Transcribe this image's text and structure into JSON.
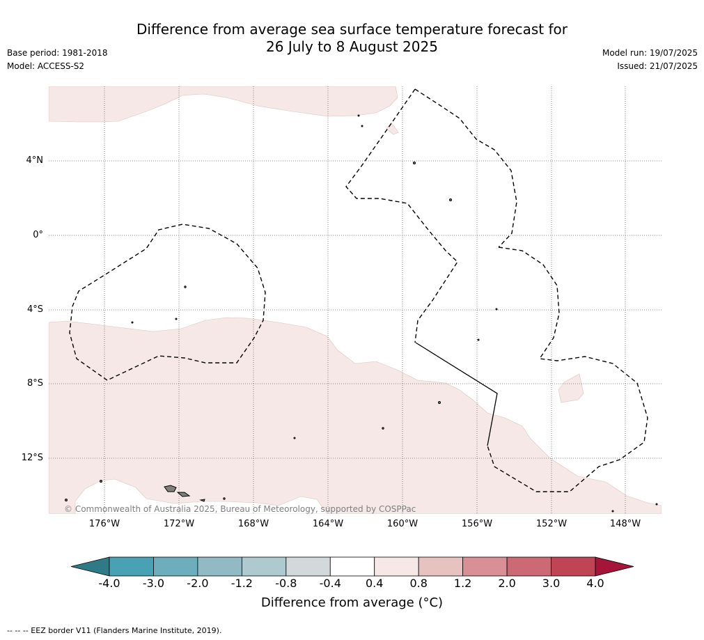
{
  "title": {
    "line1": "Difference from average sea surface temperature forecast for",
    "line2": "26 July to 8 August 2025"
  },
  "meta": {
    "base_period": "Base period: 1981-2018",
    "model": "Model: ACCESS-S2",
    "model_run": "Model run: 19/07/2025",
    "issued": "Issued: 21/07/2025"
  },
  "map": {
    "land_color": "#808080",
    "anomaly_fill_color": "#f5e8e6",
    "eez_border_style": "dashed black",
    "lat_labels": [
      "4°N",
      "0°",
      "4°S",
      "8°S",
      "12°S"
    ],
    "lon_labels": [
      "176°W",
      "172°W",
      "168°W",
      "164°W",
      "160°W",
      "156°W",
      "152°W",
      "148°W"
    ],
    "copyright": "© Commonwealth of Australia 2025, Bureau of Meteorology, supported by COSPPac"
  },
  "colorbar": {
    "title": "Difference from average (°C)",
    "tick_labels": [
      "-4.0",
      "-3.0",
      "-2.0",
      "-1.2",
      "-0.8",
      "-0.4",
      "0.4",
      "0.8",
      "1.2",
      "2.0",
      "3.0",
      "4.0"
    ],
    "colors": {
      "below_min": "#2f7a87",
      "bins": [
        "#48a2b3",
        "#6daebc",
        "#91bac5",
        "#aecacf",
        "#d3d9da",
        "#ffffff",
        "#f5e8e6",
        "#e6c3c0",
        "#d88f96",
        "#cb6a75",
        "#bf4454"
      ],
      "above_max": "#a5153a"
    }
  },
  "footer": "-- -- -- EEZ border V11 (Flanders Marine Institute, 2019)."
}
